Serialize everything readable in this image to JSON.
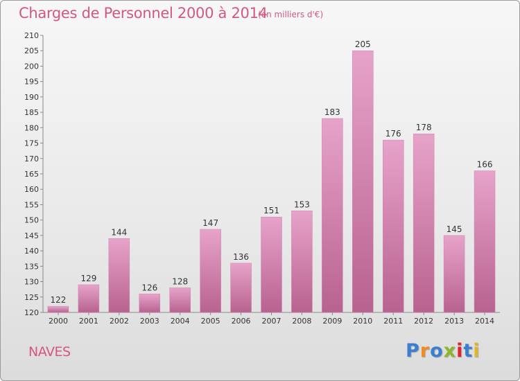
{
  "title": "Charges de Personnel 2000 à 2014",
  "subtitle": "(en milliers d'€)",
  "commune": "NAVES",
  "logo": {
    "text": "Proxiti",
    "colors": [
      "#3a7fd0",
      "#f08a24",
      "#3a7fd0",
      "#8ab82a",
      "#e0252a",
      "#3a7fd0",
      "#e0b52a"
    ]
  },
  "colors": {
    "bar_top": "#e7a3ca",
    "bar_bottom": "#b8628f",
    "title": "#d2587e"
  },
  "chart_data": {
    "type": "bar",
    "title": "Charges de Personnel 2000 à 2014",
    "subtitle": "(en milliers d'€)",
    "categories": [
      "2000",
      "2001",
      "2002",
      "2003",
      "2004",
      "2005",
      "2006",
      "2007",
      "2008",
      "2009",
      "2010",
      "2011",
      "2012",
      "2013",
      "2014"
    ],
    "values": [
      122,
      129,
      144,
      126,
      128,
      147,
      136,
      151,
      153,
      183,
      205,
      176,
      178,
      145,
      166
    ],
    "ylim": [
      120,
      210
    ],
    "yticks": [
      120,
      125,
      130,
      135,
      140,
      145,
      150,
      155,
      160,
      165,
      170,
      175,
      180,
      185,
      190,
      195,
      200,
      205,
      210
    ],
    "grid": false,
    "data_labels": true
  }
}
